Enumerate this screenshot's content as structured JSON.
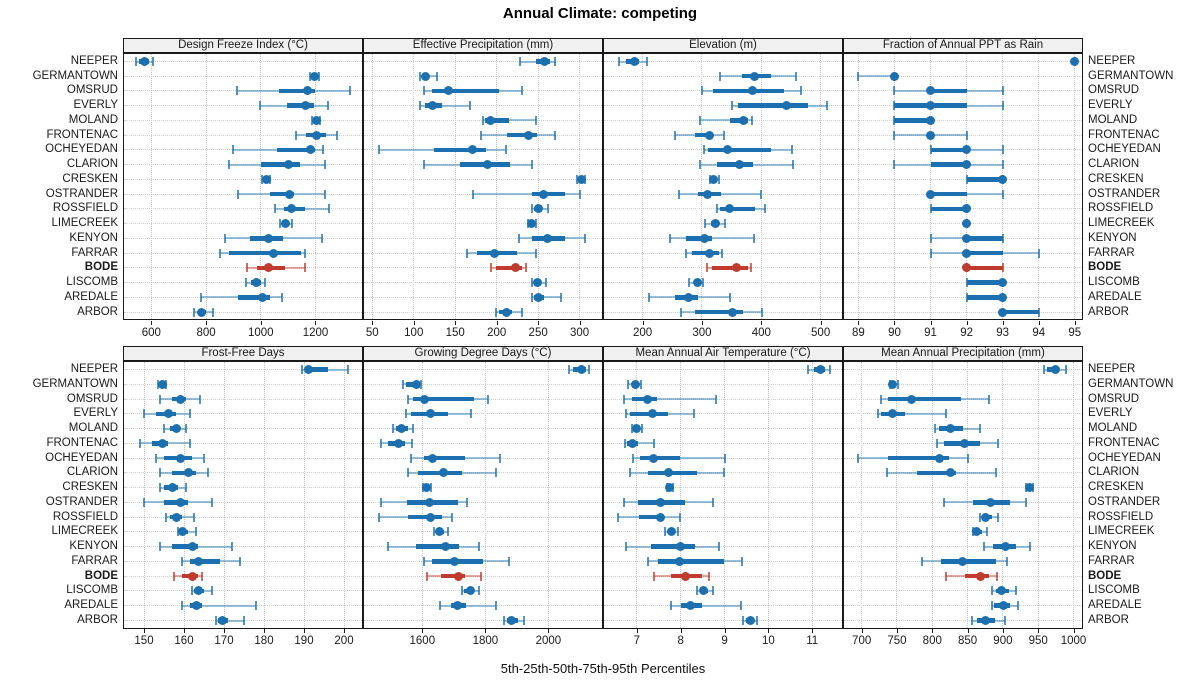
{
  "title": "Annual Climate: competing",
  "footer": "5th-25th-50th-75th-95th Percentiles",
  "colors": {
    "series": "#1c70b0",
    "series_light": "rgba(28,112,176,0.45)",
    "series_cap": "rgba(28,112,176,0.75)",
    "highlight": "#c03a2e",
    "highlight_light": "rgba(192,58,46,0.45)",
    "highlight_cap": "rgba(192,58,46,0.75)",
    "strip_bg": "#f0f0f0",
    "grid": "#c9c9c9",
    "frame": "#1a1a1a"
  },
  "stations": [
    "NEEPER",
    "GERMANTOWN",
    "OMSRUD",
    "EVERLY",
    "MOLAND",
    "FRONTENAC",
    "OCHEYEDAN",
    "CLARION",
    "CRESKEN",
    "OSTRANDER",
    "ROSSFIELD",
    "LIMECREEK",
    "KENYON",
    "FARRAR",
    "BODE",
    "LISCOMB",
    "AREDALE",
    "ARBOR"
  ],
  "highlight_station": "BODE",
  "chart_data": {
    "type": "scatter",
    "variant": "percentile interval dot-plot (5th-25th-50th-75th-95th)",
    "title": "Annual Climate: competing",
    "footer_note": "5th-25th-50th-75th-95th Percentiles",
    "categories": [
      "NEEPER",
      "GERMANTOWN",
      "OMSRUD",
      "EVERLY",
      "MOLAND",
      "FRONTENAC",
      "OCHEYEDAN",
      "CLARION",
      "CRESKEN",
      "OSTRANDER",
      "ROSSFIELD",
      "LIMECREEK",
      "KENYON",
      "FARRAR",
      "BODE",
      "LISCOMB",
      "AREDALE",
      "ARBOR"
    ],
    "highlight": "BODE",
    "layout": {
      "rows": 2,
      "cols": 4,
      "grid": "dotted",
      "station_labels": "left and right"
    },
    "panels": [
      {
        "row": 0,
        "col": 0,
        "title": "Design Freeze Index (°C)",
        "xlim": [
          500,
          1370
        ],
        "ticks": [
          600,
          800,
          1000,
          1200
        ],
        "values": [
          [
            545,
            555,
            575,
            590,
            605
          ],
          [
            1180,
            1190,
            1196,
            1205,
            1212
          ],
          [
            912,
            1065,
            1170,
            1197,
            1325
          ],
          [
            998,
            1095,
            1165,
            1196,
            1245
          ],
          [
            1188,
            1196,
            1205,
            1212,
            1218
          ],
          [
            1130,
            1166,
            1203,
            1240,
            1280
          ],
          [
            900,
            1060,
            1180,
            1198,
            1227
          ],
          [
            885,
            1000,
            1100,
            1145,
            1235
          ],
          [
            1005,
            1012,
            1020,
            1028,
            1035
          ],
          [
            915,
            1035,
            1105,
            1122,
            1235
          ],
          [
            1052,
            1085,
            1112,
            1160,
            1248
          ],
          [
            1070,
            1080,
            1090,
            1100,
            1113
          ],
          [
            870,
            960,
            1030,
            1080,
            1225
          ],
          [
            850,
            882,
            1045,
            1148,
            1162
          ],
          [
            950,
            987,
            1028,
            1090,
            1160
          ],
          [
            945,
            965,
            985,
            1000,
            1015
          ],
          [
            780,
            915,
            1005,
            1032,
            1078
          ],
          [
            757,
            770,
            782,
            798,
            827
          ]
        ]
      },
      {
        "row": 0,
        "col": 1,
        "title": "Effective Precipitation (mm)",
        "xlim": [
          40,
          327
        ],
        "ticks": [
          50,
          100,
          150,
          200,
          250,
          300
        ],
        "values": [
          [
            228,
            248,
            258,
            264,
            270
          ],
          [
            107,
            110,
            114,
            118,
            128
          ],
          [
            112,
            122,
            142,
            203,
            231
          ],
          [
            108,
            114,
            122,
            134,
            168
          ],
          [
            183,
            186,
            193,
            215,
            247
          ],
          [
            181,
            213,
            238,
            249,
            270
          ],
          [
            58,
            124,
            171,
            187,
            211
          ],
          [
            112,
            156,
            189,
            216,
            242
          ],
          [
            297,
            300,
            302,
            304,
            307
          ],
          [
            172,
            243,
            257,
            282,
            301
          ],
          [
            242,
            245,
            250,
            255,
            262
          ],
          [
            238,
            240,
            242,
            244,
            247
          ],
          [
            227,
            243,
            261,
            282,
            306
          ],
          [
            164,
            176,
            197,
            225,
            247
          ],
          [
            193,
            199,
            223,
            230,
            235
          ],
          [
            243,
            246,
            249,
            253,
            260
          ],
          [
            242,
            245,
            250,
            257,
            278
          ],
          [
            199,
            203,
            212,
            218,
            230
          ]
        ]
      },
      {
        "row": 0,
        "col": 2,
        "title": "Elevation (m)",
        "xlim": [
          135,
          536
        ],
        "ticks": [
          200,
          300,
          400,
          500
        ],
        "values": [
          [
            160,
            172,
            186,
            194,
            208
          ],
          [
            330,
            367,
            389,
            416,
            458
          ],
          [
            300,
            319,
            386,
            439,
            467
          ],
          [
            350,
            360,
            443,
            478,
            511
          ],
          [
            296,
            347,
            370,
            378,
            384
          ],
          [
            254,
            289,
            312,
            318,
            338
          ],
          [
            303,
            310,
            343,
            417,
            451
          ],
          [
            296,
            325,
            364,
            386,
            453
          ],
          [
            313,
            317,
            320,
            323,
            329
          ],
          [
            261,
            294,
            310,
            332,
            400
          ],
          [
            325,
            331,
            347,
            389,
            406
          ],
          [
            305,
            315,
            323,
            328,
            339
          ],
          [
            246,
            273,
            304,
            317,
            388
          ],
          [
            273,
            283,
            312,
            329,
            334
          ],
          [
            308,
            317,
            358,
            377,
            383
          ],
          [
            278,
            287,
            293,
            297,
            301
          ],
          [
            210,
            254,
            277,
            294,
            347
          ],
          [
            264,
            289,
            352,
            369,
            401
          ]
        ]
      },
      {
        "row": 0,
        "col": 3,
        "title": "Fraction of Annual PPT as Rain",
        "xlim": [
          88.6,
          95.2
        ],
        "ticks": [
          89,
          90,
          91,
          92,
          93,
          94,
          95
        ],
        "values": [
          [
            95,
            95,
            95,
            95,
            95
          ],
          [
            89,
            90,
            90,
            90,
            90
          ],
          [
            90,
            91,
            91,
            92,
            93
          ],
          [
            90,
            90,
            91,
            92,
            93
          ],
          [
            90,
            90,
            91,
            91,
            91
          ],
          [
            90,
            91,
            91,
            91,
            92
          ],
          [
            91,
            91,
            92,
            92,
            93
          ],
          [
            90,
            91,
            92,
            92,
            93
          ],
          [
            92,
            92,
            93,
            93,
            93
          ],
          [
            91,
            91,
            91,
            92,
            93
          ],
          [
            91,
            91,
            92,
            92,
            92
          ],
          [
            92,
            92,
            92,
            92,
            92
          ],
          [
            91,
            92,
            92,
            93,
            93
          ],
          [
            91,
            92,
            92,
            93,
            94
          ],
          [
            92,
            92,
            92,
            93,
            93
          ],
          [
            92,
            92,
            93,
            93,
            93
          ],
          [
            92,
            92,
            93,
            93,
            93
          ],
          [
            93,
            93,
            93,
            94,
            94
          ]
        ]
      },
      {
        "row": 1,
        "col": 0,
        "title": "Frost-Free Days",
        "xlim": [
          145,
          204.5
        ],
        "ticks": [
          150,
          160,
          170,
          180,
          190,
          200
        ],
        "values": [
          [
            189.5,
            190.5,
            191,
            196,
            201
          ],
          [
            153.5,
            154,
            154.5,
            155,
            155.5
          ],
          [
            154,
            157,
            159,
            160.5,
            164
          ],
          [
            150,
            153,
            156,
            158,
            161.5
          ],
          [
            155,
            156.5,
            158,
            159,
            160.5
          ],
          [
            149,
            152,
            154.5,
            156,
            161.5
          ],
          [
            153,
            155,
            159,
            162,
            165
          ],
          [
            154,
            157,
            161,
            163,
            166
          ],
          [
            154,
            155,
            157,
            158.5,
            160.5
          ],
          [
            150,
            155,
            159,
            161,
            167
          ],
          [
            155.5,
            156.5,
            158,
            159.5,
            162.5
          ],
          [
            158.5,
            159,
            159.5,
            161,
            163
          ],
          [
            154,
            157,
            162,
            163.5,
            172
          ],
          [
            159.5,
            161.5,
            163.5,
            169,
            174
          ],
          [
            157.5,
            159.5,
            162,
            163.5,
            164.5
          ],
          [
            162,
            162.5,
            163.5,
            165,
            167
          ],
          [
            159.5,
            161.5,
            163,
            164.5,
            178
          ],
          [
            168,
            168.5,
            169.5,
            171,
            175
          ]
        ]
      },
      {
        "row": 1,
        "col": 1,
        "title": "Growing Degree Days (°C)",
        "xlim": [
          1415,
          2170
        ],
        "ticks": [
          1600,
          1800,
          2000
        ],
        "values": [
          [
            2065,
            2077,
            2105,
            2120,
            2130
          ],
          [
            1540,
            1548,
            1580,
            1588,
            1595
          ],
          [
            1556,
            1572,
            1608,
            1765,
            1808
          ],
          [
            1547,
            1564,
            1627,
            1680,
            1756
          ],
          [
            1508,
            1516,
            1533,
            1555,
            1572
          ],
          [
            1470,
            1490,
            1526,
            1545,
            1568
          ],
          [
            1565,
            1605,
            1632,
            1735,
            1848
          ],
          [
            1555,
            1585,
            1666,
            1725,
            1835
          ],
          [
            1603,
            1608,
            1614,
            1620,
            1627
          ],
          [
            1470,
            1551,
            1624,
            1712,
            1743
          ],
          [
            1463,
            1554,
            1627,
            1663,
            1693
          ],
          [
            1638,
            1643,
            1656,
            1669,
            1680
          ],
          [
            1490,
            1580,
            1674,
            1716,
            1779
          ],
          [
            1606,
            1632,
            1703,
            1793,
            1874
          ],
          [
            1615,
            1660,
            1716,
            1737,
            1785
          ],
          [
            1726,
            1733,
            1754,
            1764,
            1779
          ],
          [
            1656,
            1691,
            1712,
            1737,
            1835
          ],
          [
            1859,
            1869,
            1884,
            1905,
            1922
          ]
        ]
      },
      {
        "row": 1,
        "col": 2,
        "title": "Mean Annual Air Temperature (°C)",
        "xlim": [
          6.25,
          11.68
        ],
        "ticks": [
          7,
          8,
          9,
          10,
          11
        ],
        "values": [
          [
            10.9,
            11.05,
            11.2,
            11.3,
            11.4
          ],
          [
            6.8,
            6.9,
            6.98,
            7.02,
            7.1
          ],
          [
            6.7,
            6.88,
            7.25,
            7.45,
            8.8
          ],
          [
            6.75,
            6.85,
            7.35,
            7.7,
            8.3
          ],
          [
            6.9,
            6.95,
            7.0,
            7.05,
            7.12
          ],
          [
            6.72,
            6.78,
            6.9,
            7.02,
            7.4
          ],
          [
            6.92,
            7.08,
            7.38,
            7.98,
            9.0
          ],
          [
            6.85,
            7.25,
            7.73,
            8.38,
            8.98
          ],
          [
            7.68,
            7.71,
            7.74,
            7.78,
            7.83
          ],
          [
            6.7,
            7.02,
            7.55,
            8.1,
            8.73
          ],
          [
            6.58,
            7.05,
            7.55,
            7.62,
            7.98
          ],
          [
            7.64,
            7.7,
            7.78,
            7.86,
            7.94
          ],
          [
            6.75,
            7.32,
            8.0,
            8.32,
            8.88
          ],
          [
            7.26,
            7.48,
            7.98,
            8.98,
            9.39
          ],
          [
            7.4,
            7.78,
            8.12,
            8.48,
            8.64
          ],
          [
            8.38,
            8.45,
            8.53,
            8.62,
            8.74
          ],
          [
            7.78,
            8.0,
            8.23,
            8.48,
            9.38
          ],
          [
            9.42,
            9.5,
            9.6,
            9.66,
            9.74
          ]
        ]
      },
      {
        "row": 1,
        "col": 3,
        "title": "Mean Annual Precipitation (mm)",
        "xlim": [
          675,
          1012
        ],
        "ticks": [
          700,
          750,
          800,
          850,
          900,
          950,
          1000
        ],
        "values": [
          [
            958,
            963,
            974,
            980,
            990
          ],
          [
            740,
            742,
            744,
            748,
            752
          ],
          [
            728,
            738,
            770,
            840,
            880
          ],
          [
            723,
            728,
            744,
            762,
            820
          ],
          [
            804,
            810,
            826,
            843,
            868
          ],
          [
            806,
            817,
            845,
            868,
            893
          ],
          [
            695,
            737,
            810,
            823,
            850
          ],
          [
            736,
            779,
            826,
            834,
            890
          ],
          [
            932,
            935,
            937,
            939,
            942
          ],
          [
            817,
            857,
            882,
            910,
            933
          ],
          [
            867,
            870,
            875,
            884,
            893
          ],
          [
            857,
            859,
            862,
            870,
            878
          ],
          [
            873,
            886,
            904,
            918,
            938
          ],
          [
            786,
            813,
            843,
            890,
            906
          ],
          [
            819,
            847,
            868,
            880,
            892
          ],
          [
            884,
            890,
            898,
            908,
            918
          ],
          [
            884,
            888,
            901,
            910,
            922
          ],
          [
            856,
            864,
            875,
            889,
            903
          ]
        ]
      }
    ]
  }
}
